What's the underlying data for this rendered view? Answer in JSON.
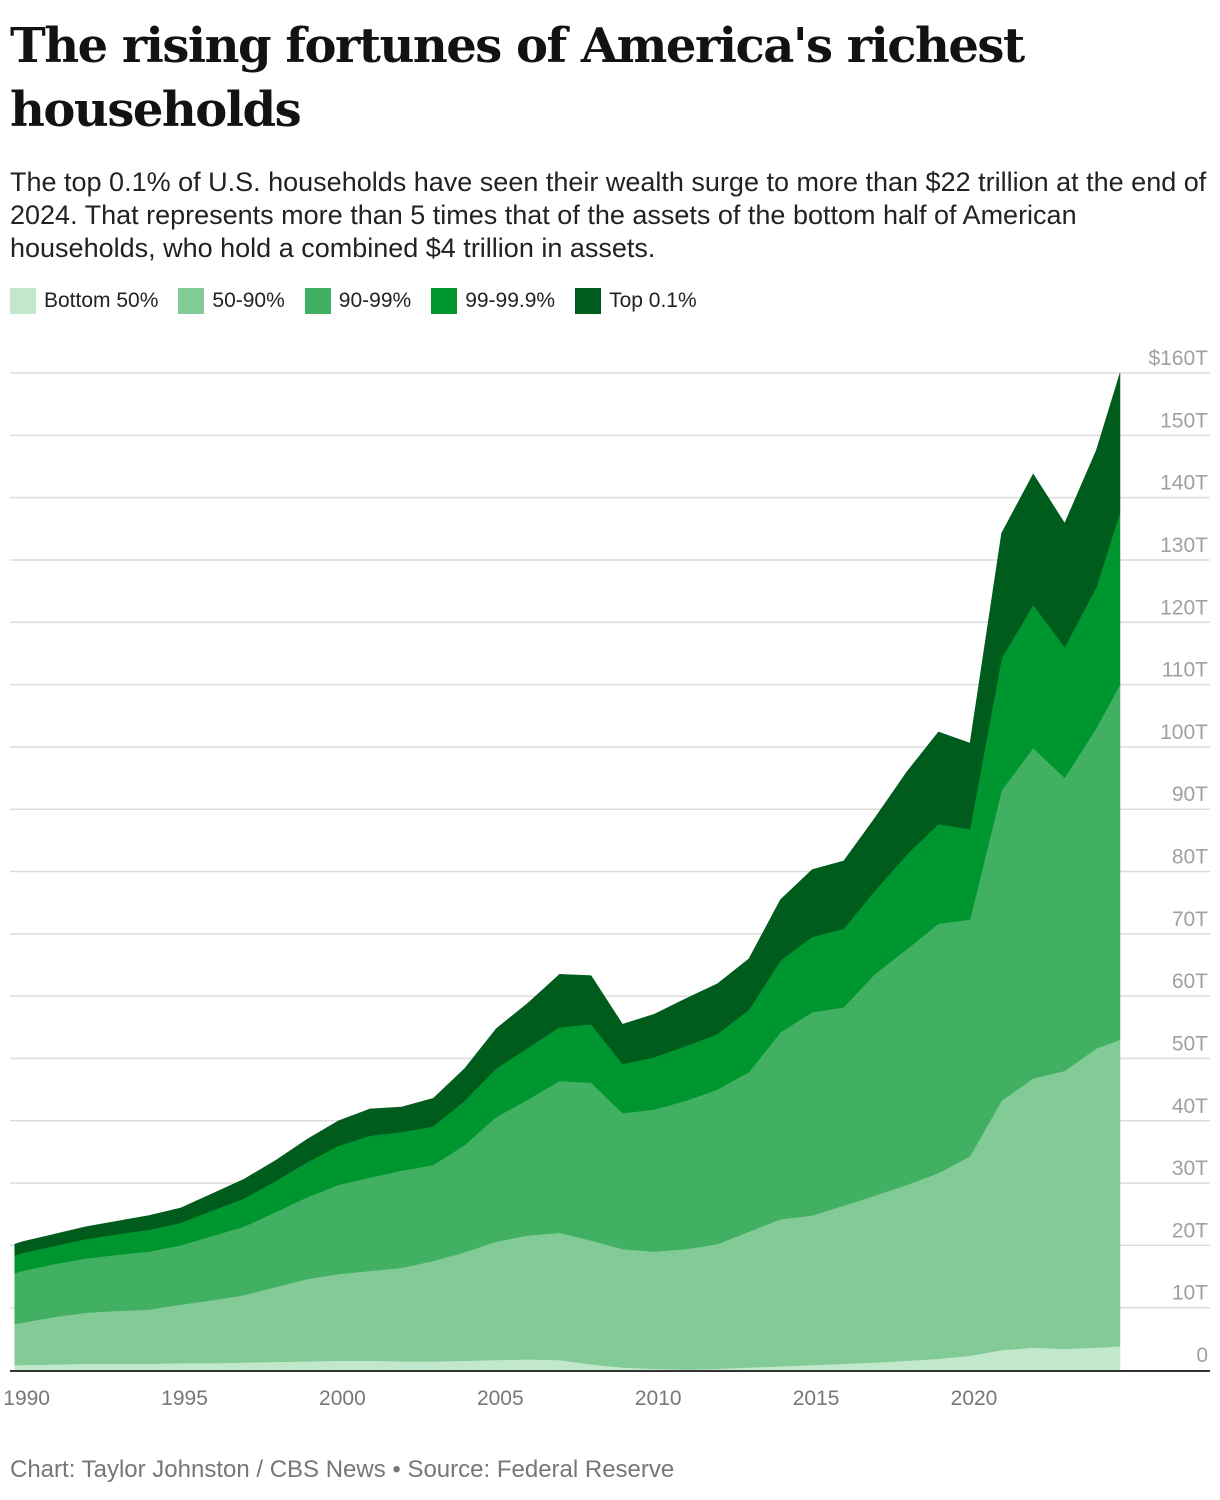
{
  "header": {
    "title": "The rising fortunes of America's richest households",
    "subtitle": "The top 0.1% of U.S. households have seen their wealth surge to more than $22 trillion at the end of 2024. That represents more than 5 times that of the assets of the bottom half of American households, who hold a combined $4 trillion in assets."
  },
  "footer": {
    "credit": "Chart: Taylor Johnston / CBS News • Source: Federal Reserve"
  },
  "chart_data": {
    "type": "area",
    "stacked": true,
    "title": "The rising fortunes of America's richest households",
    "xlabel": "",
    "ylabel": "",
    "xlim": [
      1989.6,
      2024.75
    ],
    "ylim": [
      0,
      160
    ],
    "y_tick_labels": [
      "0",
      "10T",
      "20T",
      "30T",
      "40T",
      "50T",
      "60T",
      "70T",
      "80T",
      "90T",
      "100T",
      "110T",
      "120T",
      "130T",
      "140T",
      "150T",
      "$160T"
    ],
    "y_ticks": [
      0,
      10,
      20,
      30,
      40,
      50,
      60,
      70,
      80,
      90,
      100,
      110,
      120,
      130,
      140,
      150,
      160
    ],
    "x_ticks": [
      1990,
      1995,
      2000,
      2005,
      2010,
      2015,
      2020
    ],
    "x_tick_labels": [
      "1990",
      "1995",
      "2000",
      "2005",
      "2010",
      "2015",
      "2020"
    ],
    "grid": true,
    "legend_position": "top-left",
    "x": [
      1989.75,
      1990,
      1991,
      1992,
      1993,
      1994,
      1995,
      1996,
      1997,
      1998,
      1999,
      2000,
      2001,
      2002,
      2003,
      2004,
      2005,
      2006,
      2007,
      2008,
      2009,
      2010,
      2011,
      2012,
      2013,
      2014,
      2015,
      2016,
      2017,
      2018,
      2019,
      2020,
      2021,
      2022,
      2023,
      2024,
      2024.75
    ],
    "series": [
      {
        "name": "Bottom 50%",
        "color": "#c2e8cc",
        "values": [
          0.8,
          0.8,
          0.9,
          1.0,
          1.0,
          1.0,
          1.1,
          1.1,
          1.2,
          1.3,
          1.4,
          1.5,
          1.5,
          1.4,
          1.4,
          1.5,
          1.6,
          1.7,
          1.6,
          0.9,
          0.4,
          0.2,
          0.1,
          0.2,
          0.4,
          0.6,
          0.8,
          1.0,
          1.2,
          1.5,
          1.8,
          2.3,
          3.2,
          3.6,
          3.4,
          3.6,
          3.8
        ]
      },
      {
        "name": "50-90%",
        "color": "#82ca96",
        "values": [
          6.6,
          6.8,
          7.6,
          8.2,
          8.5,
          8.7,
          9.4,
          10.1,
          10.8,
          12.0,
          13.2,
          13.9,
          14.4,
          15.0,
          16.1,
          17.4,
          19.0,
          19.9,
          20.4,
          19.9,
          19.0,
          18.8,
          19.3,
          20.0,
          21.8,
          23.6,
          24.0,
          25.4,
          26.8,
          28.2,
          29.8,
          32.0,
          40.0,
          43.2,
          44.6,
          48.0,
          49.2
        ]
      },
      {
        "name": "90-99%",
        "color": "#41b063",
        "values": [
          8.1,
          8.3,
          8.5,
          8.7,
          9.0,
          9.3,
          9.5,
          10.3,
          11.0,
          12.0,
          13.1,
          14.3,
          15.0,
          15.6,
          15.4,
          17.2,
          20.0,
          21.8,
          24.4,
          25.3,
          21.8,
          22.8,
          23.8,
          24.8,
          25.6,
          30.0,
          32.6,
          31.8,
          35.6,
          37.8,
          40.0,
          38.0,
          49.8,
          53.0,
          47.0,
          51.4,
          57.0
        ]
      },
      {
        "name": "99-99.9%",
        "color": "#00962f",
        "values": [
          2.9,
          2.9,
          2.9,
          3.1,
          3.3,
          3.5,
          3.6,
          4.1,
          4.5,
          5.0,
          5.6,
          6.3,
          6.7,
          6.2,
          6.2,
          7.1,
          7.8,
          8.3,
          8.6,
          9.4,
          7.9,
          8.4,
          8.8,
          8.9,
          10.0,
          11.5,
          12.1,
          12.6,
          13.4,
          15.2,
          16.0,
          14.5,
          21.2,
          23.0,
          21.0,
          22.6,
          27.6
        ]
      },
      {
        "name": "Top 0.1%",
        "color": "#005c1c",
        "values": [
          1.8,
          1.8,
          1.9,
          2.0,
          2.1,
          2.3,
          2.4,
          2.7,
          3.1,
          3.3,
          3.7,
          4.0,
          4.3,
          4.0,
          4.5,
          5.2,
          6.4,
          7.2,
          8.5,
          7.8,
          6.4,
          6.9,
          7.6,
          8.1,
          8.2,
          9.8,
          10.8,
          10.9,
          11.7,
          13.3,
          14.8,
          13.8,
          20.1,
          21.0,
          19.9,
          22.0,
          22.4
        ]
      }
    ]
  }
}
